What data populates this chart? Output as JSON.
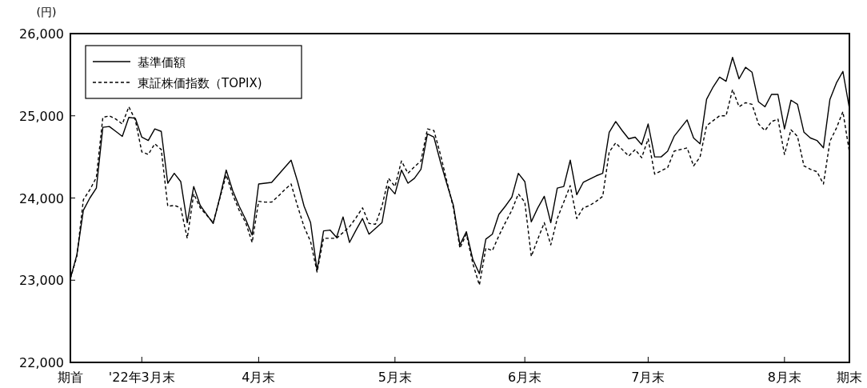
{
  "chart_data": {
    "type": "line",
    "ylabel": "(円)",
    "ylim": [
      22000,
      26000
    ],
    "yticks": [
      {
        "value": 22000,
        "label": "22,000"
      },
      {
        "value": 23000,
        "label": "23,000"
      },
      {
        "value": 24000,
        "label": "24,000"
      },
      {
        "value": 25000,
        "label": "25,000"
      },
      {
        "value": 26000,
        "label": "26,000"
      }
    ],
    "categories": [
      "期首",
      null,
      null,
      null,
      null,
      null,
      null,
      null,
      null,
      null,
      null,
      "'22年3月末",
      null,
      null,
      null,
      null,
      null,
      null,
      null,
      null,
      null,
      null,
      null,
      null,
      null,
      null,
      null,
      null,
      null,
      "4月末",
      null,
      null,
      null,
      null,
      null,
      null,
      null,
      null,
      null,
      null,
      null,
      null,
      null,
      null,
      null,
      null,
      null,
      null,
      null,
      null,
      "5月末",
      null,
      null,
      null,
      null,
      null,
      null,
      null,
      null,
      null,
      null,
      null,
      null,
      null,
      null,
      null,
      null,
      null,
      null,
      null,
      "6月末",
      null,
      null,
      null,
      null,
      null,
      null,
      null,
      null,
      null,
      null,
      null,
      null,
      null,
      null,
      null,
      null,
      null,
      null,
      "7月末",
      null,
      null,
      null,
      null,
      null,
      null,
      null,
      null,
      null,
      null,
      null,
      null,
      null,
      null,
      null,
      null,
      null,
      null,
      null,
      null,
      "8月末",
      null,
      null,
      null,
      null,
      null,
      null,
      null,
      null,
      null,
      "期末"
    ],
    "legend": "top left",
    "series": [
      {
        "name": "基準価額",
        "color": "#000000",
        "line_style": "solid",
        "values": [
          23020,
          23310,
          23850,
          24000,
          24120,
          24860,
          24870,
          24810,
          24750,
          24980,
          24970,
          24740,
          24700,
          24840,
          24810,
          24180,
          24300,
          24200,
          23700,
          24140,
          23910,
          23800,
          23690,
          24000,
          24340,
          24090,
          23900,
          23740,
          23550,
          24170,
          24180,
          24190,
          24280,
          24370,
          24460,
          24200,
          23900,
          23700,
          23120,
          23600,
          23610,
          23520,
          23770,
          23460,
          23610,
          23750,
          23560,
          23630,
          23700,
          24140,
          24050,
          24340,
          24180,
          24240,
          24350,
          24780,
          24740,
          24440,
          24170,
          23910,
          23430,
          23590,
          23250,
          23080,
          23500,
          23560,
          23800,
          23900,
          24010,
          24300,
          24200,
          23710,
          23880,
          24020,
          23700,
          24120,
          24140,
          24460,
          24040,
          24190,
          24230,
          24270,
          24300,
          24800,
          24930,
          24820,
          24720,
          24740,
          24650,
          24900,
          24500,
          24500,
          24570,
          24750,
          24850,
          24950,
          24730,
          24660,
          25200,
          25350,
          25470,
          25420,
          25710,
          25450,
          25590,
          25530,
          25170,
          25110,
          25260,
          25260,
          24840,
          25190,
          25140,
          24800,
          24730,
          24700,
          24610,
          25200,
          25400,
          25540,
          25090
        ]
      },
      {
        "name": "東証株価指数（TOPIX)",
        "color": "#000000",
        "line_style": "dashed",
        "values": [
          23020,
          23290,
          23980,
          24100,
          24250,
          24980,
          25000,
          24960,
          24900,
          25110,
          24950,
          24560,
          24530,
          24660,
          24590,
          23900,
          23910,
          23880,
          23510,
          24050,
          23880,
          23790,
          23700,
          23990,
          24280,
          24040,
          23850,
          23700,
          23460,
          23960,
          23950,
          23950,
          24020,
          24100,
          24170,
          23900,
          23650,
          23470,
          23100,
          23510,
          23510,
          23510,
          23580,
          23650,
          23760,
          23880,
          23690,
          23680,
          23900,
          24240,
          24140,
          24450,
          24300,
          24380,
          24450,
          24840,
          24820,
          24530,
          24200,
          23880,
          23390,
          23560,
          23200,
          22940,
          23390,
          23360,
          23540,
          23700,
          23850,
          24050,
          23950,
          23290,
          23500,
          23700,
          23430,
          23750,
          23950,
          24150,
          23750,
          23880,
          23910,
          23960,
          24020,
          24560,
          24670,
          24590,
          24510,
          24590,
          24490,
          24720,
          24290,
          24330,
          24370,
          24570,
          24590,
          24610,
          24390,
          24500,
          24880,
          24940,
          25000,
          25000,
          25320,
          25110,
          25160,
          25140,
          24900,
          24820,
          24930,
          24960,
          24530,
          24830,
          24750,
          24390,
          24350,
          24320,
          24170,
          24690,
          24850,
          25050,
          24560
        ]
      }
    ]
  }
}
